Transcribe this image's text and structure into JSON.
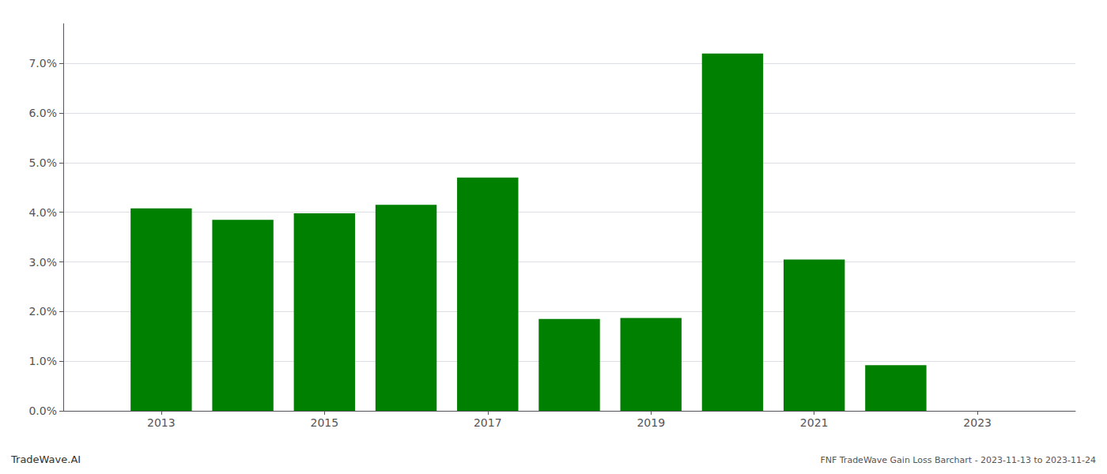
{
  "chart_data": {
    "type": "bar",
    "x": [
      2013,
      2014,
      2015,
      2016,
      2017,
      2018,
      2019,
      2020,
      2021,
      2022,
      2023
    ],
    "values": [
      0.0408,
      0.0385,
      0.0398,
      0.0415,
      0.047,
      0.0185,
      0.0187,
      0.072,
      0.0305,
      0.0092,
      0.0
    ],
    "color": "#008000",
    "xlim": [
      2011.8,
      2024.2
    ],
    "xticks": [
      2013,
      2015,
      2017,
      2019,
      2021,
      2023
    ],
    "ylim": [
      0.0,
      0.078
    ],
    "yticks": [
      {
        "value": 0.0,
        "label": "0.0%"
      },
      {
        "value": 0.01,
        "label": "1.0%"
      },
      {
        "value": 0.02,
        "label": "2.0%"
      },
      {
        "value": 0.03,
        "label": "3.0%"
      },
      {
        "value": 0.04,
        "label": "4.0%"
      },
      {
        "value": 0.05,
        "label": "5.0%"
      },
      {
        "value": 0.06,
        "label": "6.0%"
      },
      {
        "value": 0.07,
        "label": "7.0%"
      }
    ],
    "grid": true,
    "annotations": [
      "TradeWave.AI",
      "FNF TradeWave Gain Loss Barchart - 2023-11-13 to 2023-11-24"
    ]
  }
}
